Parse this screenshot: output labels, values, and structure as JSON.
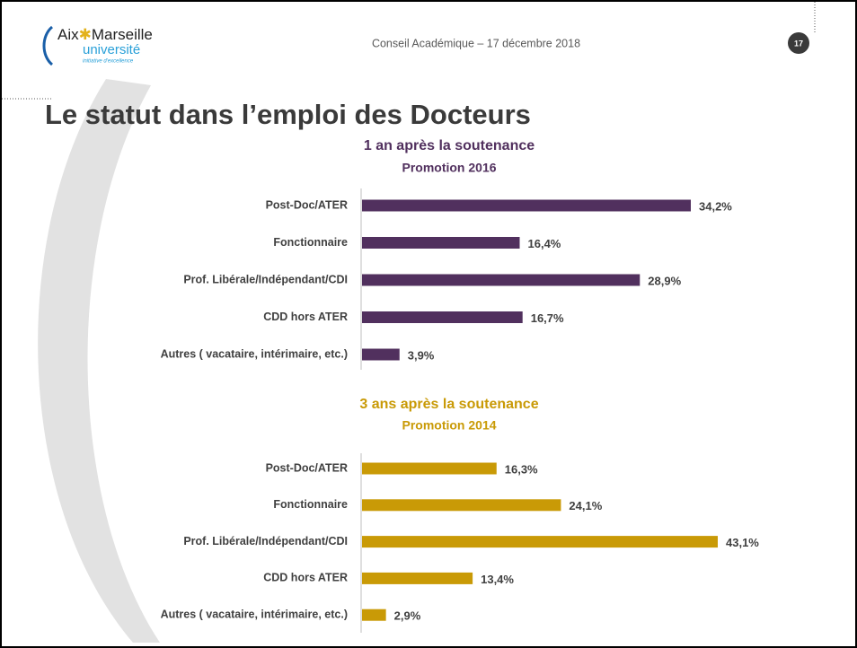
{
  "header": {
    "logo_part1": "Aix",
    "logo_part2": "Marseille",
    "logo_sub": "université",
    "logo_tagline": "initiative d'excellence",
    "meeting": "Conseil Académique – 17 décembre 2018",
    "page_number": "17"
  },
  "title": "Le statut dans l’emploi des Docteurs",
  "chart_data": [
    {
      "type": "bar",
      "orientation": "horizontal",
      "title": "1 an après la soutenance",
      "subtitle": "Promotion 2016",
      "color": "#51305e",
      "categories": [
        "Post-Doc/ATER",
        "Fonctionnaire",
        "Prof. Libérale/Indépendant/CDI",
        "CDD hors ATER",
        "Autres ( vacataire, intérimaire, etc.)"
      ],
      "values": [
        34.2,
        16.4,
        28.9,
        16.7,
        3.9
      ],
      "value_labels": [
        "34,2%",
        "16,4%",
        "28,9%",
        "16,7%",
        "3,9%"
      ]
    },
    {
      "type": "bar",
      "orientation": "horizontal",
      "title": "3 ans après la soutenance",
      "subtitle": "Promotion 2014",
      "color": "#c99a06",
      "categories": [
        "Post-Doc/ATER",
        "Fonctionnaire",
        "Prof. Libérale/Indépendant/CDI",
        "CDD hors ATER",
        "Autres ( vacataire, intérimaire, etc.)"
      ],
      "values": [
        16.3,
        24.1,
        43.1,
        13.4,
        2.9
      ],
      "value_labels": [
        "16,3%",
        "24,1%",
        "43,1%",
        "13,4%",
        "2,9%"
      ]
    }
  ]
}
